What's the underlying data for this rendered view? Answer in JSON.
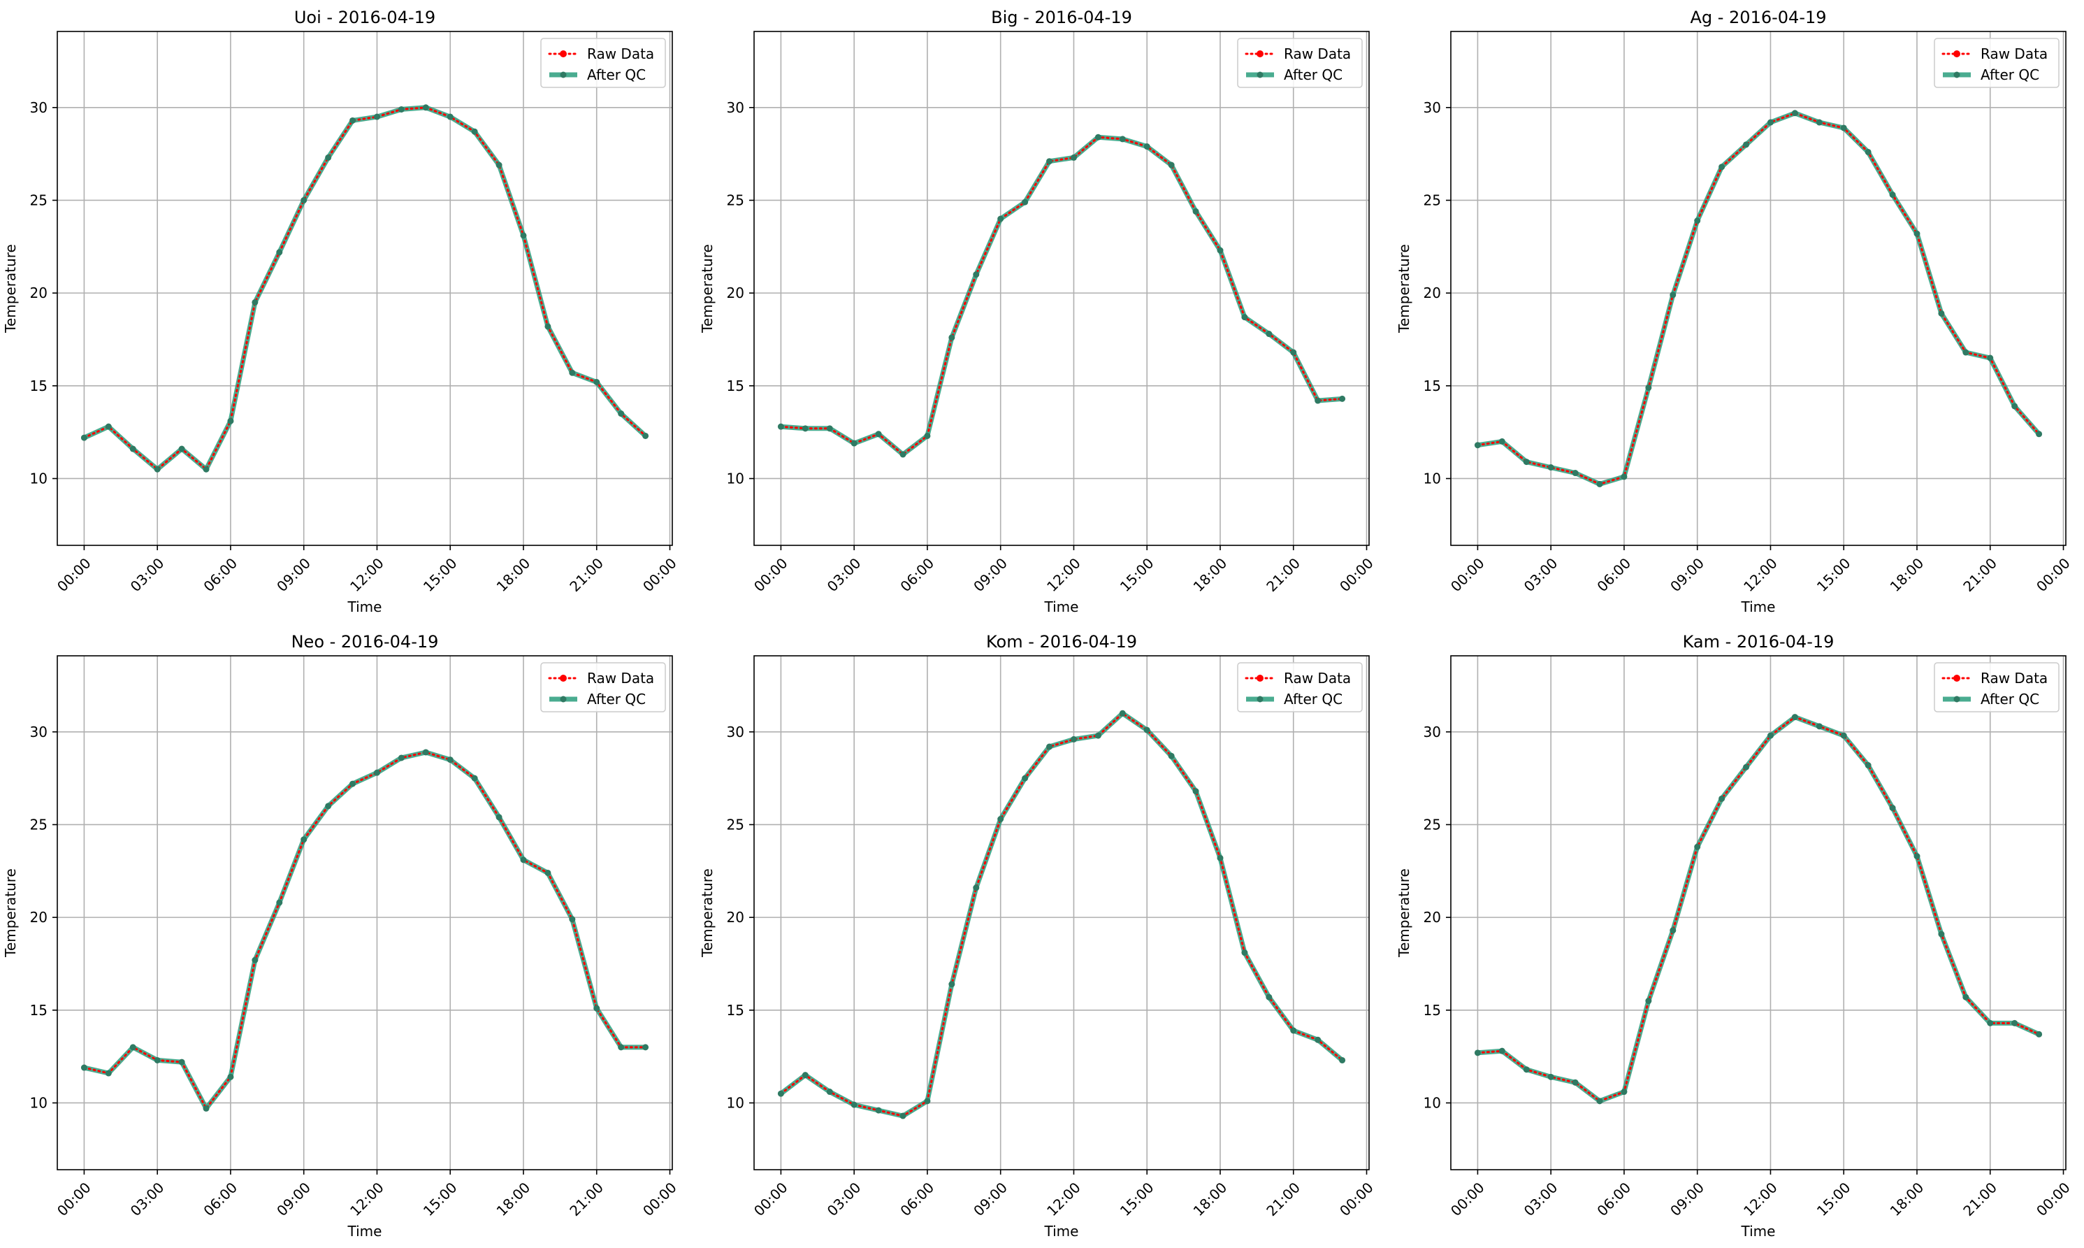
{
  "series_styles": {
    "raw": {
      "color": "#ff0000",
      "style": "dotted",
      "marker": "dot"
    },
    "qc": {
      "color": "#2a9d7c",
      "style": "solid",
      "marker": "dot"
    }
  },
  "chart_data": [
    {
      "type": "line",
      "title": "Uoi - 2016-04-19",
      "xlabel": "Time",
      "ylabel": "Temperature",
      "xlim": [
        -1.1,
        24.1
      ],
      "ylim": [
        6.4,
        34.1
      ],
      "x_ticks": [
        0,
        3,
        6,
        9,
        12,
        15,
        18,
        21,
        24
      ],
      "x_tick_labels": [
        "00:00",
        "03:00",
        "06:00",
        "09:00",
        "12:00",
        "15:00",
        "18:00",
        "21:00",
        "00:00"
      ],
      "y_ticks": [
        10,
        15,
        20,
        25,
        30
      ],
      "grid": true,
      "legend": "top-right",
      "x": [
        0,
        1,
        2,
        3,
        4,
        5,
        6,
        7,
        8,
        9,
        10,
        11,
        12,
        13,
        14,
        15,
        16,
        17,
        18,
        19,
        20,
        21,
        22,
        23
      ],
      "series": [
        {
          "name": "Raw Data",
          "values": [
            12.2,
            12.8,
            11.6,
            10.5,
            11.6,
            10.5,
            13.1,
            19.5,
            22.2,
            25.0,
            27.3,
            29.3,
            29.5,
            29.9,
            30.0,
            29.5,
            28.7,
            26.9,
            23.1,
            18.2,
            15.7,
            15.2,
            13.5,
            12.3
          ]
        },
        {
          "name": "After QC",
          "values": [
            12.2,
            12.8,
            11.6,
            10.5,
            11.6,
            10.5,
            13.1,
            19.5,
            22.2,
            25.0,
            27.3,
            29.3,
            29.5,
            29.9,
            30.0,
            29.5,
            28.7,
            26.9,
            23.1,
            18.2,
            15.7,
            15.2,
            13.5,
            12.3
          ]
        }
      ]
    },
    {
      "type": "line",
      "title": "Big - 2016-04-19",
      "xlabel": "Time",
      "ylabel": "Temperature",
      "xlim": [
        -1.1,
        24.1
      ],
      "ylim": [
        6.4,
        34.1
      ],
      "x_ticks": [
        0,
        3,
        6,
        9,
        12,
        15,
        18,
        21,
        24
      ],
      "x_tick_labels": [
        "00:00",
        "03:00",
        "06:00",
        "09:00",
        "12:00",
        "15:00",
        "18:00",
        "21:00",
        "00:00"
      ],
      "y_ticks": [
        10,
        15,
        20,
        25,
        30
      ],
      "grid": true,
      "legend": "top-right",
      "x": [
        0,
        1,
        2,
        3,
        4,
        5,
        6,
        7,
        8,
        9,
        10,
        11,
        12,
        13,
        14,
        15,
        16,
        17,
        18,
        19,
        20,
        21,
        22,
        23
      ],
      "series": [
        {
          "name": "Raw Data",
          "values": [
            12.8,
            12.7,
            12.7,
            11.9,
            12.4,
            11.3,
            12.3,
            17.6,
            21.0,
            24.0,
            24.9,
            27.1,
            27.3,
            28.4,
            28.3,
            27.9,
            26.9,
            24.4,
            22.3,
            18.7,
            17.8,
            16.8,
            14.2,
            14.3
          ]
        },
        {
          "name": "After QC",
          "values": [
            12.8,
            12.7,
            12.7,
            11.9,
            12.4,
            11.3,
            12.3,
            17.6,
            21.0,
            24.0,
            24.9,
            27.1,
            27.3,
            28.4,
            28.3,
            27.9,
            26.9,
            24.4,
            22.3,
            18.7,
            17.8,
            16.8,
            14.2,
            14.3
          ]
        }
      ]
    },
    {
      "type": "line",
      "title": "Ag - 2016-04-19",
      "xlabel": "Time",
      "ylabel": "Temperature",
      "xlim": [
        -1.1,
        24.1
      ],
      "ylim": [
        6.4,
        34.1
      ],
      "x_ticks": [
        0,
        3,
        6,
        9,
        12,
        15,
        18,
        21,
        24
      ],
      "x_tick_labels": [
        "00:00",
        "03:00",
        "06:00",
        "09:00",
        "12:00",
        "15:00",
        "18:00",
        "21:00",
        "00:00"
      ],
      "y_ticks": [
        10,
        15,
        20,
        25,
        30
      ],
      "grid": true,
      "legend": "top-right",
      "x": [
        0,
        1,
        2,
        3,
        4,
        5,
        6,
        7,
        8,
        9,
        10,
        11,
        12,
        13,
        14,
        15,
        16,
        17,
        18,
        19,
        20,
        21,
        22,
        23
      ],
      "series": [
        {
          "name": "Raw Data",
          "values": [
            11.8,
            12.0,
            10.9,
            10.6,
            10.3,
            9.7,
            10.1,
            14.9,
            19.9,
            23.9,
            26.8,
            28.0,
            29.2,
            29.7,
            29.2,
            28.9,
            27.6,
            25.3,
            23.2,
            18.9,
            16.8,
            16.5,
            13.9,
            12.4
          ]
        },
        {
          "name": "After QC",
          "values": [
            11.8,
            12.0,
            10.9,
            10.6,
            10.3,
            9.7,
            10.1,
            14.9,
            19.9,
            23.9,
            26.8,
            28.0,
            29.2,
            29.7,
            29.2,
            28.9,
            27.6,
            25.3,
            23.2,
            18.9,
            16.8,
            16.5,
            13.9,
            12.4
          ]
        }
      ]
    },
    {
      "type": "line",
      "title": "Neo - 2016-04-19",
      "xlabel": "Time",
      "ylabel": "Temperature",
      "xlim": [
        -1.1,
        24.1
      ],
      "ylim": [
        6.4,
        34.1
      ],
      "x_ticks": [
        0,
        3,
        6,
        9,
        12,
        15,
        18,
        21,
        24
      ],
      "x_tick_labels": [
        "00:00",
        "03:00",
        "06:00",
        "09:00",
        "12:00",
        "15:00",
        "18:00",
        "21:00",
        "00:00"
      ],
      "y_ticks": [
        10,
        15,
        20,
        25,
        30
      ],
      "grid": true,
      "legend": "top-right",
      "x": [
        0,
        1,
        2,
        3,
        4,
        5,
        6,
        7,
        8,
        9,
        10,
        11,
        12,
        13,
        14,
        15,
        16,
        17,
        18,
        19,
        20,
        21,
        22,
        23
      ],
      "series": [
        {
          "name": "Raw Data",
          "values": [
            11.9,
            11.6,
            13.0,
            12.3,
            12.2,
            9.7,
            11.4,
            17.7,
            20.8,
            24.2,
            26.0,
            27.2,
            27.8,
            28.6,
            28.9,
            28.5,
            27.5,
            25.4,
            23.1,
            22.4,
            19.9,
            15.1,
            13.0,
            13.0
          ]
        },
        {
          "name": "After QC",
          "values": [
            11.9,
            11.6,
            13.0,
            12.3,
            12.2,
            9.7,
            11.4,
            17.7,
            20.8,
            24.2,
            26.0,
            27.2,
            27.8,
            28.6,
            28.9,
            28.5,
            27.5,
            25.4,
            23.1,
            22.4,
            19.9,
            15.1,
            13.0,
            13.0
          ]
        }
      ]
    },
    {
      "type": "line",
      "title": "Kom - 2016-04-19",
      "xlabel": "Time",
      "ylabel": "Temperature",
      "xlim": [
        -1.1,
        24.1
      ],
      "ylim": [
        6.4,
        34.1
      ],
      "x_ticks": [
        0,
        3,
        6,
        9,
        12,
        15,
        18,
        21,
        24
      ],
      "x_tick_labels": [
        "00:00",
        "03:00",
        "06:00",
        "09:00",
        "12:00",
        "15:00",
        "18:00",
        "21:00",
        "00:00"
      ],
      "y_ticks": [
        10,
        15,
        20,
        25,
        30
      ],
      "grid": true,
      "legend": "top-right",
      "x": [
        0,
        1,
        2,
        3,
        4,
        5,
        6,
        7,
        8,
        9,
        10,
        11,
        12,
        13,
        14,
        15,
        16,
        17,
        18,
        19,
        20,
        21,
        22,
        23
      ],
      "series": [
        {
          "name": "Raw Data",
          "values": [
            10.5,
            11.5,
            10.6,
            9.9,
            9.6,
            9.3,
            10.1,
            16.4,
            21.6,
            25.3,
            27.5,
            29.2,
            29.6,
            29.8,
            31.0,
            30.1,
            28.7,
            26.8,
            23.2,
            18.1,
            15.7,
            13.9,
            13.4,
            12.3
          ]
        },
        {
          "name": "After QC",
          "values": [
            10.5,
            11.5,
            10.6,
            9.9,
            9.6,
            9.3,
            10.1,
            16.4,
            21.6,
            25.3,
            27.5,
            29.2,
            29.6,
            29.8,
            31.0,
            30.1,
            28.7,
            26.8,
            23.2,
            18.1,
            15.7,
            13.9,
            13.4,
            12.3
          ]
        }
      ]
    },
    {
      "type": "line",
      "title": "Kam - 2016-04-19",
      "xlabel": "Time",
      "ylabel": "Temperature",
      "xlim": [
        -1.1,
        24.1
      ],
      "ylim": [
        6.4,
        34.1
      ],
      "x_ticks": [
        0,
        3,
        6,
        9,
        12,
        15,
        18,
        21,
        24
      ],
      "x_tick_labels": [
        "00:00",
        "03:00",
        "06:00",
        "09:00",
        "12:00",
        "15:00",
        "18:00",
        "21:00",
        "00:00"
      ],
      "y_ticks": [
        10,
        15,
        20,
        25,
        30
      ],
      "grid": true,
      "legend": "top-right",
      "x": [
        0,
        1,
        2,
        3,
        4,
        5,
        6,
        7,
        8,
        9,
        10,
        11,
        12,
        13,
        14,
        15,
        16,
        17,
        18,
        19,
        20,
        21,
        22,
        23
      ],
      "series": [
        {
          "name": "Raw Data",
          "values": [
            12.7,
            12.8,
            11.8,
            11.4,
            11.1,
            10.1,
            10.6,
            15.5,
            19.3,
            23.8,
            26.4,
            28.1,
            29.8,
            30.8,
            30.3,
            29.8,
            28.2,
            25.9,
            23.3,
            19.1,
            15.7,
            14.3,
            14.3,
            13.7
          ]
        },
        {
          "name": "After QC",
          "values": [
            12.7,
            12.8,
            11.8,
            11.4,
            11.1,
            10.1,
            10.6,
            15.5,
            19.3,
            23.8,
            26.4,
            28.1,
            29.8,
            30.8,
            30.3,
            29.8,
            28.2,
            25.9,
            23.3,
            19.1,
            15.7,
            14.3,
            14.3,
            13.7
          ]
        }
      ]
    }
  ]
}
